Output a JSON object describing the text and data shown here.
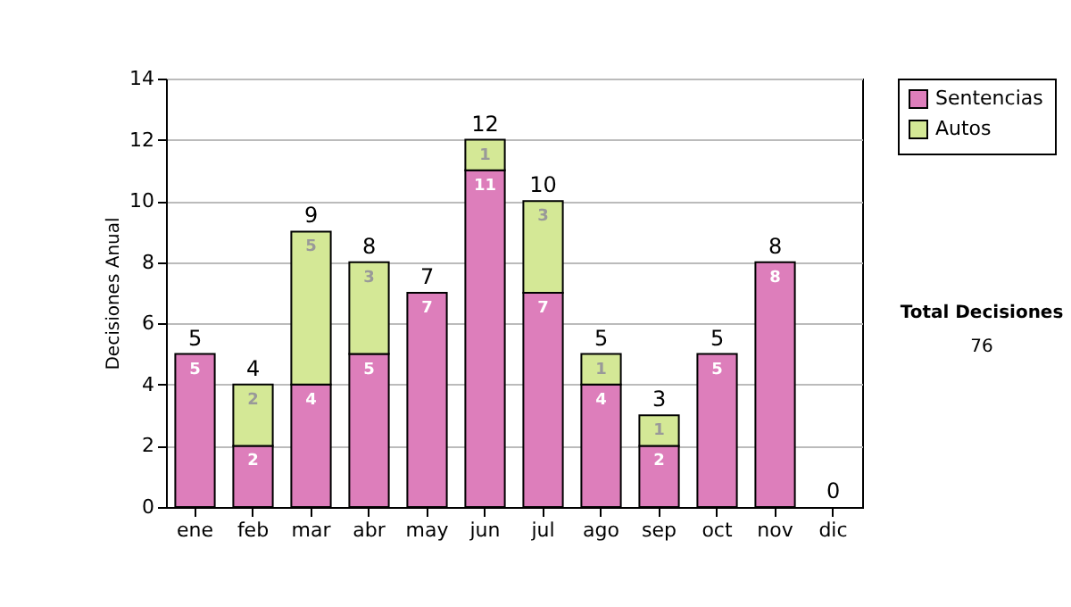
{
  "chart_data": {
    "type": "bar",
    "stacked": true,
    "ylabel": "Decisiones Anual",
    "categories": [
      "ene",
      "feb",
      "mar",
      "abr",
      "may",
      "jun",
      "jul",
      "ago",
      "sep",
      "oct",
      "nov",
      "dic"
    ],
    "series": [
      {
        "name": "Sentencias",
        "color": "#dd7ebb",
        "values": [
          5,
          2,
          4,
          5,
          7,
          11,
          7,
          4,
          2,
          5,
          8,
          0
        ],
        "value_labels": [
          "5",
          "2",
          "4",
          "5",
          "7",
          "11",
          "7",
          "4",
          "2",
          "5",
          "8",
          null
        ]
      },
      {
        "name": "Autos",
        "color": "#d4e896",
        "values": [
          0,
          2,
          5,
          3,
          0,
          1,
          3,
          1,
          1,
          0,
          0,
          0
        ],
        "value_labels": [
          null,
          "2",
          "5",
          "3",
          null,
          "1",
          "3",
          "1",
          "1",
          null,
          null,
          null
        ]
      }
    ],
    "totals": [
      "5",
      "4",
      "9",
      "8",
      "7",
      "12",
      "10",
      "5",
      "3",
      "5",
      "8",
      "0"
    ],
    "ylim": [
      0,
      14
    ],
    "yticks": [
      0,
      2,
      4,
      6,
      8,
      10,
      12,
      14
    ],
    "grid": "y",
    "legend": "right",
    "annotations": [
      "Total Decisiones",
      "76"
    ]
  }
}
